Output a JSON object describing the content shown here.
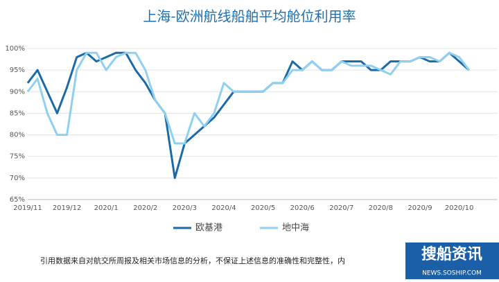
{
  "chart_data": {
    "type": "line",
    "title": "上海-欧洲航线船舶平均舱位利用率",
    "categories": [
      "2019/11",
      null,
      null,
      null,
      "2019/12",
      null,
      null,
      null,
      "2020/1",
      null,
      null,
      null,
      "2020/2",
      null,
      null,
      null,
      "2020/3",
      null,
      null,
      null,
      "2020/4",
      null,
      null,
      null,
      "2020/5",
      null,
      null,
      null,
      "2020/6",
      null,
      null,
      null,
      "2020/7",
      null,
      null,
      null,
      "2020/8",
      null,
      null,
      null,
      "2020/9",
      null,
      null,
      null,
      "2020/10",
      null
    ],
    "series": [
      {
        "name": "欧基港",
        "color": "#1a6aa8",
        "values": [
          92,
          95,
          90,
          85,
          91,
          98,
          99,
          97,
          98,
          99,
          99,
          95,
          92,
          88,
          85,
          70,
          78,
          80,
          82,
          84,
          87,
          90,
          90,
          90,
          90,
          92,
          92,
          97,
          95,
          97,
          95,
          95,
          97,
          97,
          97,
          95,
          95,
          97,
          97,
          97,
          98,
          97,
          97,
          99,
          97,
          95
        ]
      },
      {
        "name": "地中海",
        "color": "#8fd0f0",
        "values": [
          90,
          93,
          85,
          80,
          80,
          95,
          99,
          99,
          95,
          98,
          99,
          99,
          95,
          88,
          85,
          78,
          78,
          85,
          82,
          85,
          92,
          90,
          90,
          90,
          90,
          92,
          92,
          95,
          95,
          97,
          95,
          95,
          97,
          96,
          96,
          96,
          95,
          94,
          97,
          97,
          98,
          98,
          97,
          99,
          98,
          95
        ]
      }
    ],
    "ylim": [
      65,
      100
    ],
    "yticks": [
      {
        "value": 65,
        "label": "65%"
      },
      {
        "value": 70,
        "label": "70%"
      },
      {
        "value": 75,
        "label": "75%"
      },
      {
        "value": 80,
        "label": "80%"
      },
      {
        "value": 85,
        "label": "85%"
      },
      {
        "value": 90,
        "label": "90%"
      },
      {
        "value": 95,
        "label": "95%"
      },
      {
        "value": 100,
        "label": "100%"
      }
    ],
    "grid": true,
    "note": "引用数据来自对航交所周报及相关市场信息的分析，不保证上述信息的准确性和完整性，内",
    "logo": "搜船资讯",
    "logo_url": "NEWS.SOSHIP.COM"
  }
}
